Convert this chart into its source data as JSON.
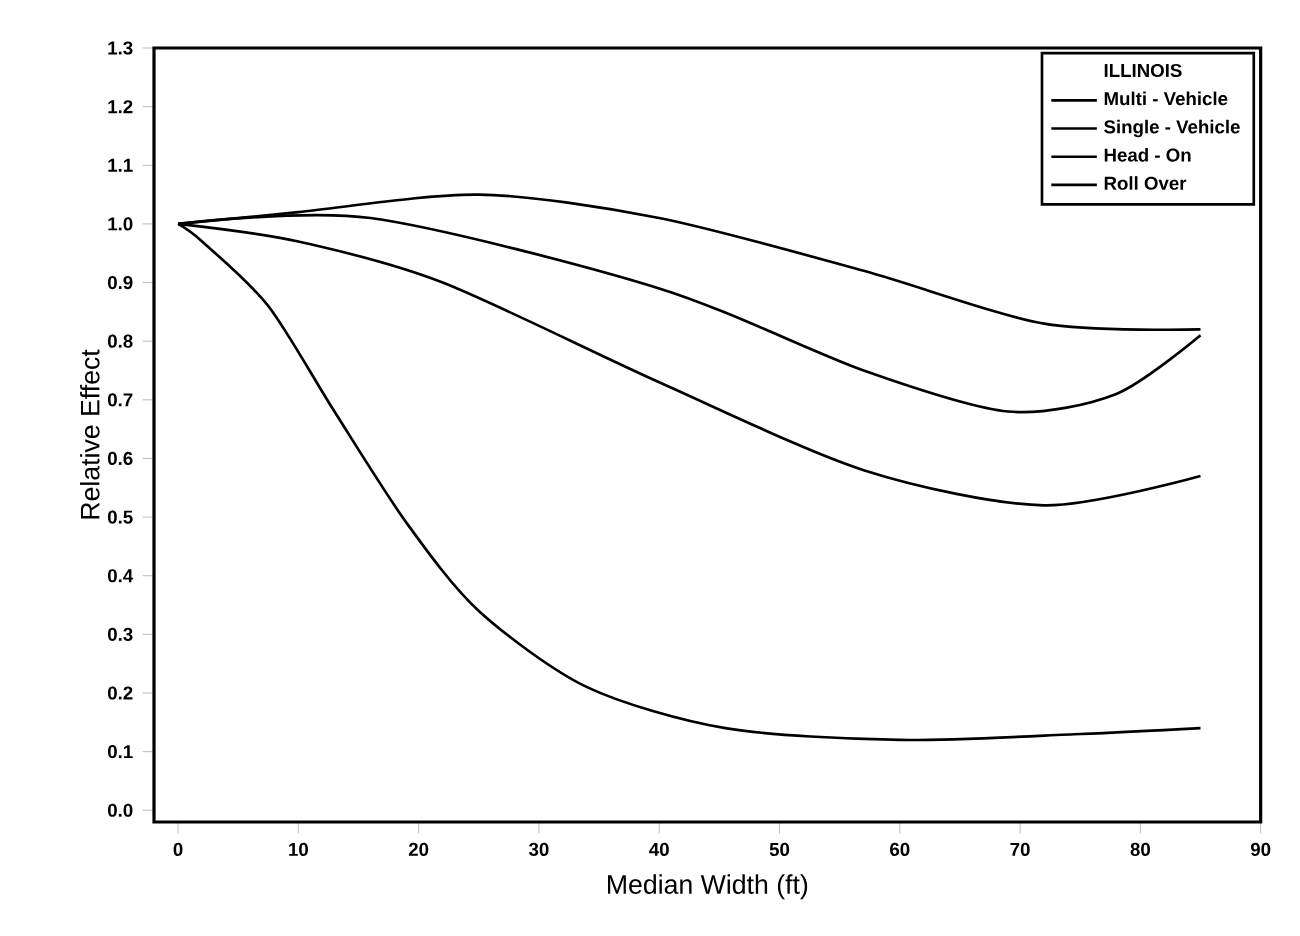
{
  "chart_data": {
    "type": "line",
    "xlabel": "Median Width (ft)",
    "ylabel": "Relative Effect",
    "legend_title": "ILLINOIS",
    "legend": "top right",
    "xlim": [
      -2,
      90
    ],
    "ylim": [
      -0.02,
      1.3
    ],
    "xticks": [
      0,
      10,
      20,
      30,
      40,
      50,
      60,
      70,
      80,
      90
    ],
    "yticks": [
      {
        "value": 0,
        "label": "0.0"
      },
      {
        "value": 0.1,
        "label": "0.1"
      },
      {
        "value": 0.2,
        "label": "0.2"
      },
      {
        "value": 0.3,
        "label": "0.3"
      },
      {
        "value": 0.4,
        "label": "0.4"
      },
      {
        "value": 0.5,
        "label": "0.5"
      },
      {
        "value": 0.6,
        "label": "0.6"
      },
      {
        "value": 0.7,
        "label": "0.7"
      },
      {
        "value": 0.8,
        "label": "0.8"
      },
      {
        "value": 0.9,
        "label": "0.9"
      },
      {
        "value": 1.0,
        "label": "1.0"
      },
      {
        "value": 1.1,
        "label": "1.1"
      },
      {
        "value": 1.2,
        "label": "1.2"
      },
      {
        "value": 1.3,
        "label": "1.3"
      }
    ],
    "series": [
      {
        "name": "Multi - Vehicle",
        "color": "#000000",
        "x": [
          0,
          10,
          25,
          40,
          57,
          72,
          85
        ],
        "values": [
          1.0,
          1.02,
          1.05,
          1.01,
          0.92,
          0.83,
          0.82
        ]
      },
      {
        "name": "Single - Vehicle",
        "color": "#000000",
        "x": [
          0,
          16,
          40,
          57,
          69,
          78,
          85
        ],
        "values": [
          1.0,
          1.01,
          0.89,
          0.75,
          0.68,
          0.71,
          0.81
        ]
      },
      {
        "name": "Head - On",
        "color": "#000000",
        "x": [
          0,
          10,
          22,
          40,
          57,
          72,
          85
        ],
        "values": [
          1.0,
          0.97,
          0.9,
          0.73,
          0.58,
          0.52,
          0.57
        ]
      },
      {
        "name": "Roll Over",
        "color": "#000000",
        "x": [
          0,
          2,
          7.5,
          13,
          19,
          25,
          34,
          45.5,
          60,
          75,
          85
        ],
        "values": [
          1.0,
          0.97,
          0.86,
          0.68,
          0.49,
          0.34,
          0.21,
          0.14,
          0.12,
          0.13,
          0.14
        ]
      }
    ]
  }
}
